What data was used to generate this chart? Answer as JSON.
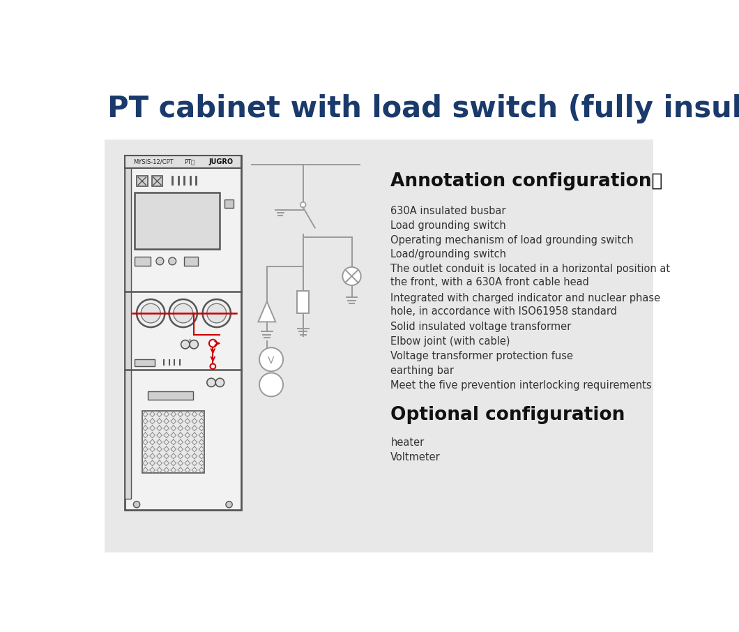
{
  "title": "PT cabinet with load switch (fully insulated type)：",
  "title_color": "#1a3a6b",
  "title_fontsize": 30,
  "bg_color": "#e8e8e8",
  "white_bg": "#ffffff",
  "annotation_title": "Annotation configuration：",
  "annotation_items": [
    "630A insulated busbar",
    "Load grounding switch",
    "Operating mechanism of load grounding switch",
    "Load/grounding switch",
    "The outlet conduit is located in a horizontal position at\nthe front, with a 630A front cable head",
    "Integrated with charged indicator and nuclear phase\nhole, in accordance with ISO61958 standard",
    "Solid insulated voltage transformer",
    "Elbow joint (with cable)",
    "Voltage transformer protection fuse",
    "earthing bar",
    "Meet the five prevention interlocking requirements"
  ],
  "optional_title": "Optional configuration",
  "optional_items": [
    "heater",
    "Voltmeter"
  ],
  "panel_label": "MYSIS-12/CPT",
  "panel_label2": "PT柜",
  "panel_label3": "JUGRO",
  "cabinet_border": "#555555",
  "diagram_line_color": "#999999",
  "red_color": "#cc0000"
}
